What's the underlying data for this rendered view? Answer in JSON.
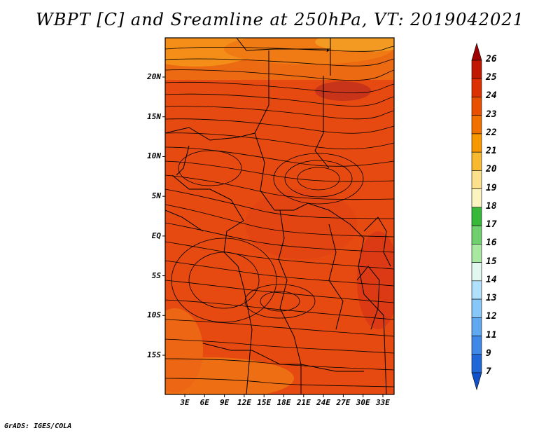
{
  "title": "WBPT [C] and Sreamline at 250hPa, VT: 2019042021",
  "footer": "GrADS: IGES/COLA",
  "map": {
    "lat_labels": [
      "20N",
      "15N",
      "10N",
      "5N",
      "EQ",
      "5S",
      "10S",
      "15S"
    ],
    "lat_values": [
      20,
      15,
      10,
      5,
      0,
      -5,
      -10,
      -15
    ],
    "lon_labels": [
      "3E",
      "6E",
      "9E",
      "12E",
      "15E",
      "18E",
      "21E",
      "24E",
      "27E",
      "30E",
      "33E"
    ],
    "lon_values": [
      3,
      6,
      9,
      12,
      15,
      18,
      21,
      24,
      27,
      30,
      33
    ],
    "lat_range": [
      -20,
      25
    ],
    "lon_range": [
      0,
      35
    ]
  },
  "colorbar": {
    "labels": [
      "26",
      "25",
      "24",
      "23",
      "22",
      "21",
      "20",
      "19",
      "18",
      "17",
      "16",
      "15",
      "14",
      "13",
      "12",
      "11",
      "9",
      "7"
    ],
    "colors": [
      "#a00000",
      "#c01800",
      "#dc3000",
      "#e85000",
      "#f07000",
      "#f89800",
      "#f8b830",
      "#fce08c",
      "#fcf4c0",
      "#38b838",
      "#70d070",
      "#a8e8a0",
      "#e0f8f0",
      "#b0e0fc",
      "#88c8f8",
      "#60a8f0",
      "#4088e8",
      "#2068d8",
      "#1050c8"
    ]
  }
}
